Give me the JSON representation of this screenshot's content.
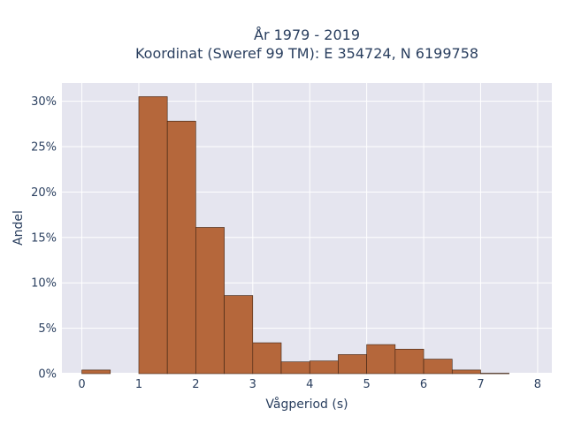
{
  "chart_data": {
    "type": "bar",
    "title_lines": [
      "År 1979 - 2019",
      "Koordinat (Sweref 99 TM): E 354724, N 6199758"
    ],
    "xlabel": "Vågperiod (s)",
    "ylabel": "Andel",
    "bin_width": 0.5,
    "bins": [
      {
        "x0": 0.0,
        "x1": 0.5,
        "value": 0.4
      },
      {
        "x0": 0.5,
        "x1": 1.0,
        "value": 0.0
      },
      {
        "x0": 1.0,
        "x1": 1.5,
        "value": 30.5
      },
      {
        "x0": 1.5,
        "x1": 2.0,
        "value": 27.8
      },
      {
        "x0": 2.0,
        "x1": 2.5,
        "value": 16.1
      },
      {
        "x0": 2.5,
        "x1": 3.0,
        "value": 8.6
      },
      {
        "x0": 3.0,
        "x1": 3.5,
        "value": 3.4
      },
      {
        "x0": 3.5,
        "x1": 4.0,
        "value": 1.3
      },
      {
        "x0": 4.0,
        "x1": 4.5,
        "value": 1.4
      },
      {
        "x0": 4.5,
        "x1": 5.0,
        "value": 2.1
      },
      {
        "x0": 5.0,
        "x1": 5.5,
        "value": 3.2
      },
      {
        "x0": 5.5,
        "x1": 6.0,
        "value": 2.7
      },
      {
        "x0": 6.0,
        "x1": 6.5,
        "value": 1.6
      },
      {
        "x0": 6.5,
        "x1": 7.0,
        "value": 0.4
      },
      {
        "x0": 7.0,
        "x1": 7.5,
        "value": 0.05
      }
    ],
    "xlim": [
      -0.35,
      8.25
    ],
    "ylim": [
      0,
      32
    ],
    "xticks": [
      0,
      1,
      2,
      3,
      4,
      5,
      6,
      7,
      8
    ],
    "xtick_labels": [
      "0",
      "1",
      "2",
      "3",
      "4",
      "5",
      "6",
      "7",
      "8"
    ],
    "yticks": [
      0,
      5,
      10,
      15,
      20,
      25,
      30
    ],
    "ytick_labels": [
      "0%",
      "5%",
      "10%",
      "15%",
      "20%",
      "25%",
      "30%"
    ],
    "grid": true,
    "colors": {
      "bar_fill": "#b5673b",
      "bar_stroke": "#3d2212",
      "plot_background": "#e5e5ef",
      "grid": "#ffffff",
      "text": "#2a3f5f"
    }
  }
}
